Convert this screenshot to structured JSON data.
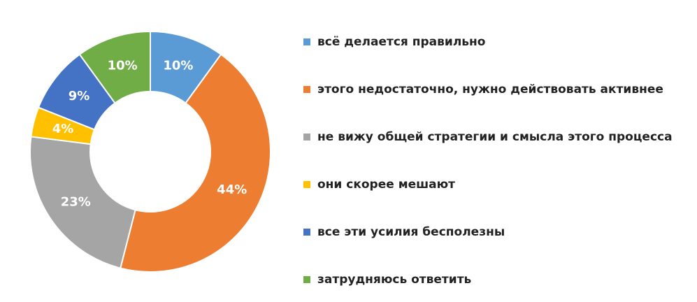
{
  "chart_data": {
    "type": "donut",
    "categories": [
      "всё делается правильно",
      "этого недостаточно, нужно действовать активнее",
      "не вижу общей стратегии и смысла этого процесса",
      "они скорее мешают",
      "все эти усилия бесполезны",
      "затрудняюсь ответить"
    ],
    "values": [
      10,
      44,
      23,
      4,
      9,
      10
    ],
    "value_labels": [
      "10%",
      "44%",
      "23%",
      "4%",
      "9%",
      "10%"
    ],
    "colors": [
      "#5b9bd5",
      "#ed7d31",
      "#a5a5a5",
      "#ffc000",
      "#4472c4",
      "#70ad47"
    ],
    "legend": "right"
  }
}
